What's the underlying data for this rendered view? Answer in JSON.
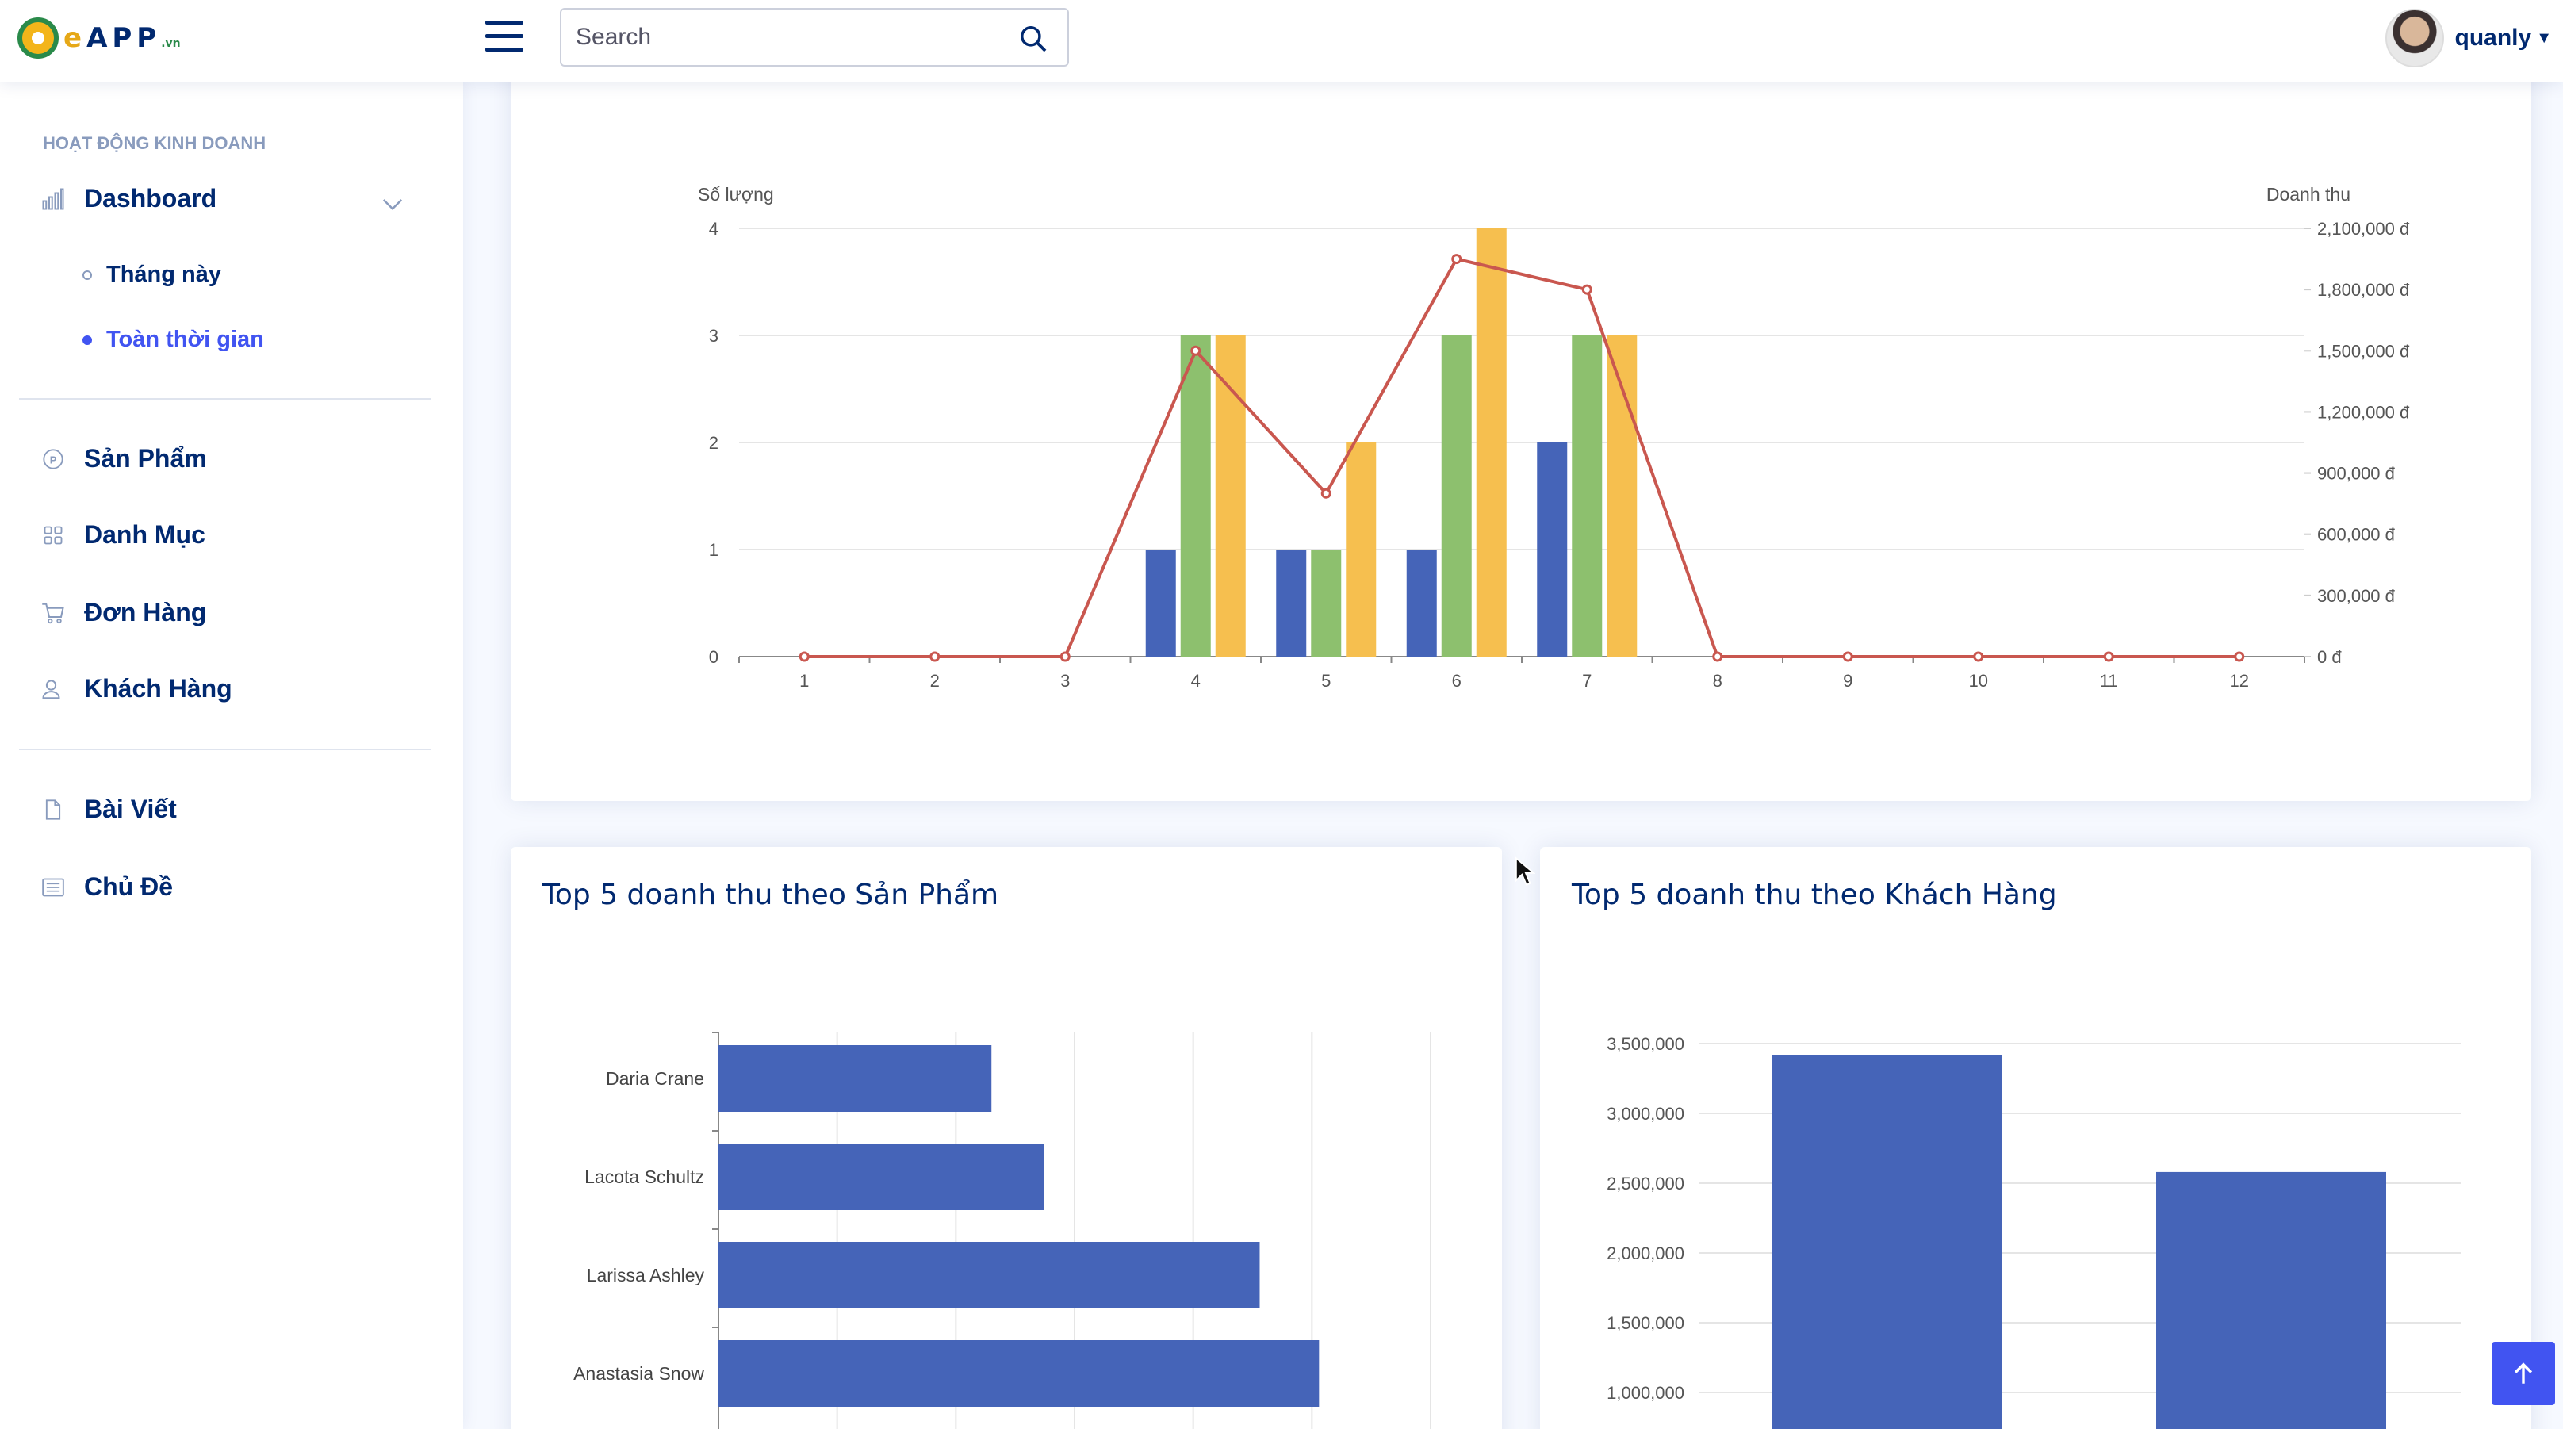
{
  "header": {
    "logo": {
      "c": "e",
      "rest": "APP",
      "vn": ".vn"
    },
    "search_placeholder": "Search",
    "username": "quanly"
  },
  "sidebar": {
    "heading": "HOẠT ĐỘNG KINH DOANH",
    "dashboard": {
      "label": "Dashboard",
      "icon": "bar-chart-icon",
      "children": [
        {
          "label": "Tháng này",
          "active": false
        },
        {
          "label": "Toàn thời gian",
          "active": true
        }
      ]
    },
    "items1": [
      {
        "label": "Sản Phẩm",
        "icon": "product-icon"
      },
      {
        "label": "Danh Mục",
        "icon": "grid-icon"
      },
      {
        "label": "Đơn Hàng",
        "icon": "cart-icon"
      },
      {
        "label": "Khách Hàng",
        "icon": "user-icon"
      }
    ],
    "items2": [
      {
        "label": "Bài Viết",
        "icon": "document-icon"
      },
      {
        "label": "Chủ Đề",
        "icon": "layout-icon"
      }
    ]
  },
  "colors": {
    "accent": "#4154f1",
    "bar_blue": "#4564b8",
    "bar_green": "#8dc06e",
    "bar_yellow": "#f6bf4f",
    "line_red": "#c9574f"
  },
  "chart_data": [
    {
      "type": "bar",
      "title": "",
      "categories": [
        "1",
        "2",
        "3",
        "4",
        "5",
        "6",
        "7",
        "8",
        "9",
        "10",
        "11",
        "12"
      ],
      "ylabel": "Số lượng",
      "y2label": "Doanh thu",
      "ylim": [
        0,
        4
      ],
      "yticks": [
        "0",
        "1",
        "2",
        "3",
        "4"
      ],
      "y2lim": [
        0,
        2100000
      ],
      "y2ticks": [
        "0 đ",
        "300,000 đ",
        "600,000 đ",
        "900,000 đ",
        "1,200,000 đ",
        "1,500,000 đ",
        "1,800,000 đ",
        "2,100,000 đ"
      ],
      "series": [
        {
          "values": [
            0,
            0,
            0,
            1,
            1,
            1,
            2,
            0,
            0,
            0,
            0,
            0
          ],
          "color": "#4564b8"
        },
        {
          "values": [
            0,
            0,
            0,
            3,
            1,
            3,
            3,
            0,
            0,
            0,
            0,
            0
          ],
          "color": "#8dc06e"
        },
        {
          "values": [
            0,
            0,
            0,
            3,
            2,
            4,
            3,
            0,
            0,
            0,
            0,
            0
          ],
          "color": "#f6bf4f"
        },
        {
          "type": "line",
          "axis": "y2",
          "values": [
            0,
            0,
            0,
            1500000,
            800000,
            1950000,
            1800000,
            0,
            0,
            0,
            0,
            0
          ],
          "color": "#c9574f"
        }
      ]
    },
    {
      "type": "bar",
      "orientation": "horizontal",
      "title": "Top 5 doanh thu theo Sản Phẩm",
      "categories": [
        "Daria Crane",
        "Lacota Schultz",
        "Larissa Ashley",
        "Anastasia Snow"
      ],
      "values": [
        1150000,
        1370000,
        2280000,
        2530000
      ],
      "xlim": [
        0,
        3000000
      ]
    },
    {
      "type": "bar",
      "title": "Top 5 doanh thu theo Khách Hàng",
      "ylim": [
        1000000,
        3500000
      ],
      "yticks": [
        "1,000,000",
        "1,500,000",
        "2,000,000",
        "2,500,000",
        "3,000,000",
        "3,500,000"
      ],
      "values": [
        3420000,
        2580000
      ]
    }
  ]
}
